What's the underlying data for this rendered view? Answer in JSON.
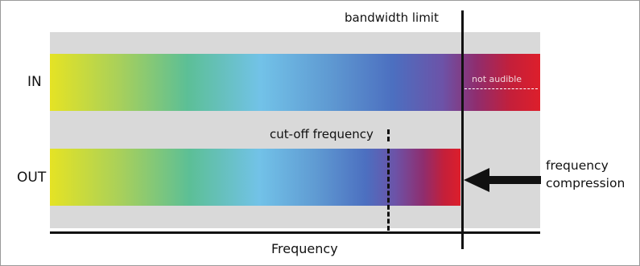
{
  "rows": {
    "in_label": "IN",
    "out_label": "OUT"
  },
  "annotations": {
    "bandwidth_limit": "bandwidth limit",
    "cutoff_frequency": "cut-off frequency",
    "not_audible": "not audible",
    "frequency_compression": "frequency\ncompression"
  },
  "axis": {
    "xlabel": "Frequency"
  },
  "colors": {
    "band_low": "#e5e324",
    "band_mid": "#72c2e8",
    "band_high": "#dd1f2b",
    "backdrop": "#d9d9d9",
    "lines": "#111111"
  },
  "icons": {
    "compression_arrow": "arrow-left-icon"
  }
}
